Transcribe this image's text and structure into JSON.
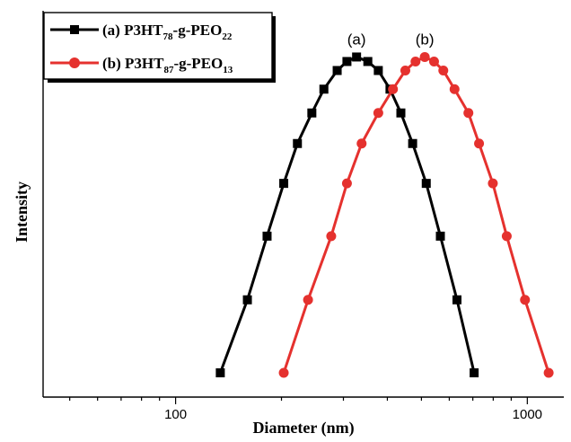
{
  "chart_data": {
    "type": "line",
    "title": "",
    "xlabel": "Diameter (nm)",
    "ylabel": "Intensity",
    "x_scale": "log",
    "xlim": [
      42,
      1270
    ],
    "ylim": [
      0,
      1.05
    ],
    "x_ticks": [
      100,
      1000
    ],
    "x_tick_labels": [
      "100",
      "1000"
    ],
    "grid": false,
    "legend_position": "top-left",
    "series": [
      {
        "name_prefix": "(a) P3HT",
        "name_sub1": "78",
        "name_mid": "-g-PEO",
        "name_sub2": "22",
        "color": "#000000",
        "marker": "square",
        "peak_label": "(a)",
        "points": [
          [
            134,
            0.0
          ],
          [
            160,
            0.227
          ],
          [
            182,
            0.425
          ],
          [
            203,
            0.589
          ],
          [
            222,
            0.713
          ],
          [
            244,
            0.808
          ],
          [
            264,
            0.882
          ],
          [
            288,
            0.94
          ],
          [
            307,
            0.968
          ],
          [
            327,
            0.982
          ],
          [
            352,
            0.968
          ],
          [
            377,
            0.94
          ],
          [
            407,
            0.882
          ],
          [
            437,
            0.808
          ],
          [
            472,
            0.713
          ],
          [
            516,
            0.589
          ],
          [
            566,
            0.425
          ],
          [
            631,
            0.227
          ],
          [
            706,
            0.0
          ]
        ]
      },
      {
        "name_prefix": "(b) P3HT",
        "name_sub1": "87",
        "name_mid": "-g-PEO",
        "name_sub2": "13",
        "color": "#e5312e",
        "marker": "circle",
        "peak_label": "(b)",
        "points": [
          [
            203,
            0.0
          ],
          [
            238,
            0.227
          ],
          [
            277,
            0.425
          ],
          [
            307,
            0.589
          ],
          [
            338,
            0.713
          ],
          [
            377,
            0.808
          ],
          [
            415,
            0.882
          ],
          [
            450,
            0.94
          ],
          [
            481,
            0.968
          ],
          [
            511,
            0.982
          ],
          [
            543,
            0.968
          ],
          [
            577,
            0.94
          ],
          [
            621,
            0.882
          ],
          [
            680,
            0.808
          ],
          [
            729,
            0.713
          ],
          [
            798,
            0.589
          ],
          [
            874,
            0.425
          ],
          [
            985,
            0.227
          ],
          [
            1150,
            0.0
          ]
        ]
      }
    ]
  }
}
